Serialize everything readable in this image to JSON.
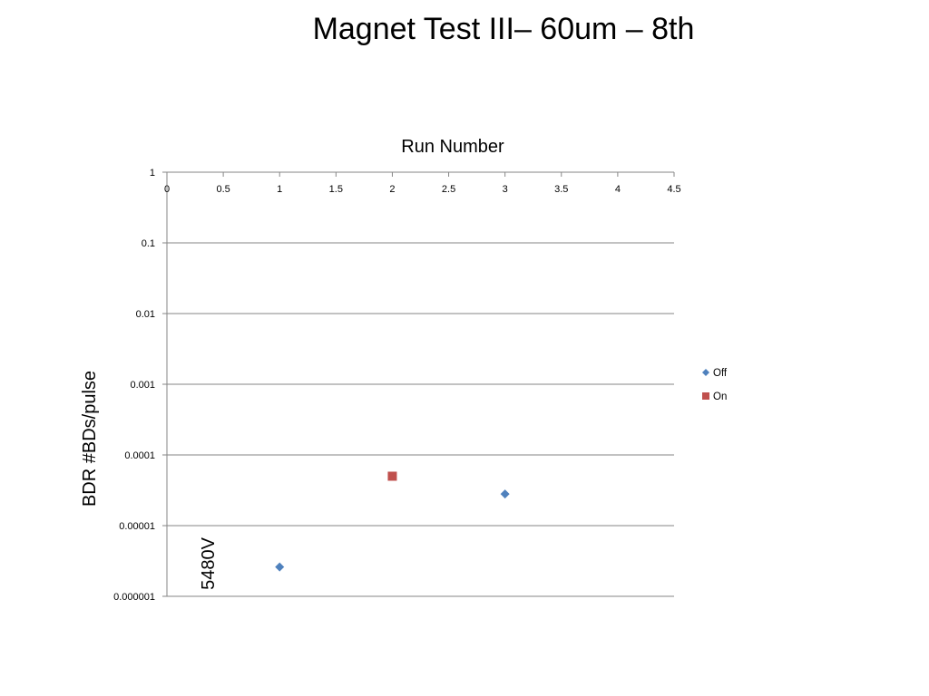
{
  "slide": {
    "title": "Magnet Test III– 60um – 8th"
  },
  "chart_data": {
    "type": "scatter",
    "xlabel": "Run Number",
    "ylabel": "BDR #BDs/pulse",
    "xlim": [
      0,
      4.5
    ],
    "x_ticks": [
      "0",
      "0.5",
      "1",
      "1.5",
      "2",
      "2.5",
      "3",
      "3.5",
      "4",
      "4.5"
    ],
    "ylim": [
      1e-06,
      1
    ],
    "y_scale": "log",
    "y_ticks": [
      "1",
      "0.1",
      "0.01",
      "0.001",
      "0.0001",
      "0.00001",
      "0.000001"
    ],
    "x_axis_position": "top",
    "grid": "horizontal major gridlines",
    "legend_position": "right",
    "series": [
      {
        "name": "Off",
        "color": "#4f81bd",
        "marker": "diamond",
        "points": [
          {
            "x": 1,
            "y": 2.6e-06
          },
          {
            "x": 3,
            "y": 2.8e-05
          }
        ]
      },
      {
        "name": "On",
        "color": "#c0504d",
        "marker": "square",
        "points": [
          {
            "x": 2,
            "y": 5e-05
          }
        ]
      }
    ],
    "annotations": [
      {
        "text": "5480V",
        "orientation": "vertical"
      }
    ]
  }
}
